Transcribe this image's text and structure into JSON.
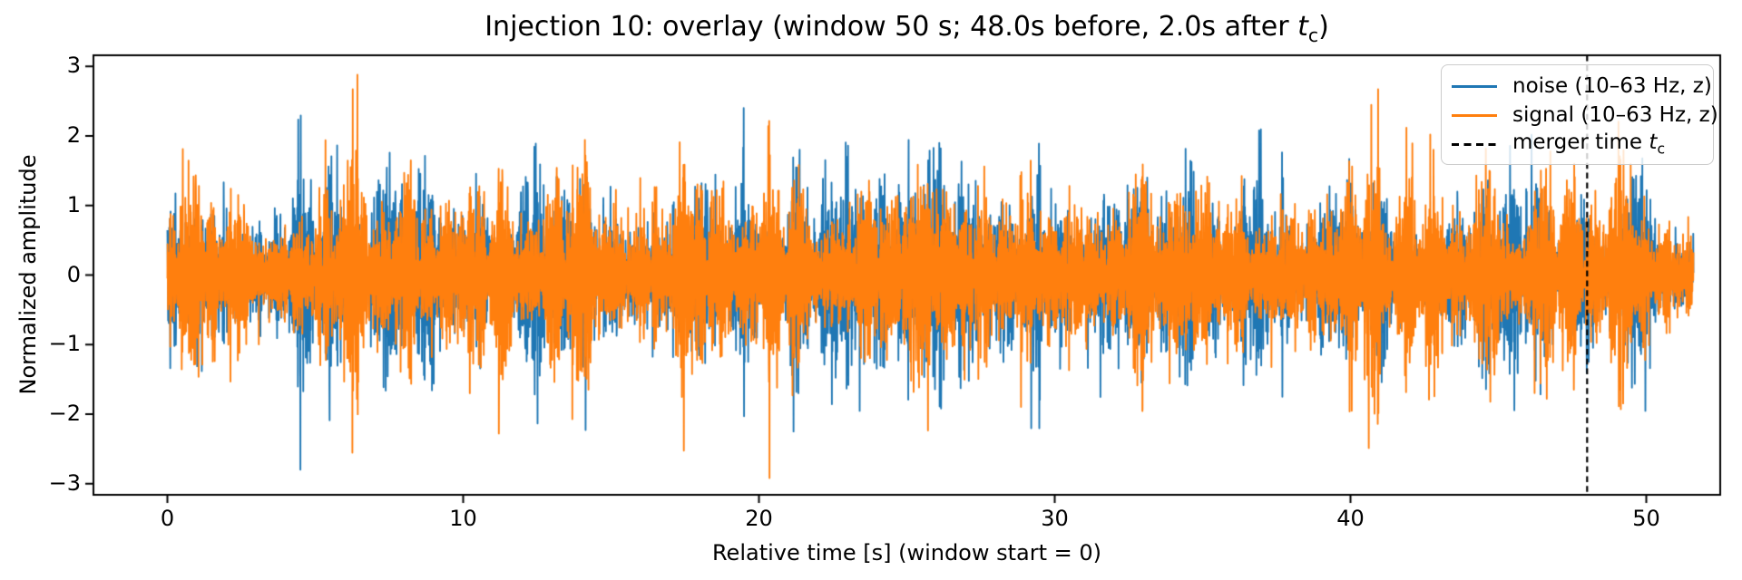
{
  "figure": {
    "title": {
      "prefix": "Injection 10: overlay (window 50 s; 48.0s before, 2.0s after ",
      "math_var": "t",
      "math_sub": "c",
      "suffix": ")"
    },
    "xlabel": "Relative time [s] (window start = 0)",
    "ylabel": "Normalized amplitude"
  },
  "legend": {
    "items": [
      {
        "label": "noise (10–63 Hz, z)",
        "color": "#1f77b4",
        "style": "solid"
      },
      {
        "label": "signal (10–63 Hz, z)",
        "color": "#ff7f0e",
        "style": "solid"
      },
      {
        "label_prefix": "merger time ",
        "math_var": "t",
        "math_sub": "c",
        "color": "#000000",
        "style": "dashed"
      }
    ]
  },
  "chart_data": {
    "type": "line",
    "title": "Injection 10: overlay (window 50 s; 48.0s before, 2.0s after t_c)",
    "xlabel": "Relative time [s] (window start = 0)",
    "ylabel": "Normalized amplitude",
    "xlim": [
      -2.5,
      52.5
    ],
    "ylim": [
      -3.16,
      3.16
    ],
    "xticks": [
      0,
      10,
      20,
      30,
      40,
      50
    ],
    "xtick_labels": [
      "0",
      "10",
      "20",
      "30",
      "40",
      "50"
    ],
    "yticks": [
      3,
      2,
      1,
      0,
      -1,
      -2,
      -3
    ],
    "ytick_labels": [
      "3",
      "2",
      "1",
      "0",
      "−1",
      "−2",
      "−3"
    ],
    "grid": false,
    "legend_position": "upper right",
    "window_s": 50,
    "time_before_merger_s": 48.0,
    "time_after_merger_s": 2.0,
    "bandpass_hz": [
      10,
      63
    ],
    "vline": {
      "x_s": 48.0,
      "color": "#000000",
      "style": "dashed",
      "label": "merger time t_c"
    },
    "series": [
      {
        "name": "noise (10–63 Hz, z)",
        "color": "#1f77b4",
        "style": "solid",
        "description": "dense z-scored band-limited noise trace; core band about ±1.2, frequent bursts to ±2, rare peaks near ±2.8",
        "t_start_s": 0,
        "t_end_s": 51.6,
        "observed_peak_abs": 2.8,
        "tail_after_50s_peak_abs": 1.65,
        "render_seed": 101,
        "z_order": 1
      },
      {
        "name": "signal (10–63 Hz, z)",
        "color": "#ff7f0e",
        "style": "solid",
        "description": "dense z-scored band-limited trace drawn on top of noise; core band about ±1.2, bursts to ±2.9",
        "t_start_s": 0,
        "t_end_s": 51.6,
        "observed_peak_abs": 2.92,
        "tail_after_50s_peak_abs": 1.65,
        "render_seed": 202,
        "z_order": 2
      }
    ]
  }
}
